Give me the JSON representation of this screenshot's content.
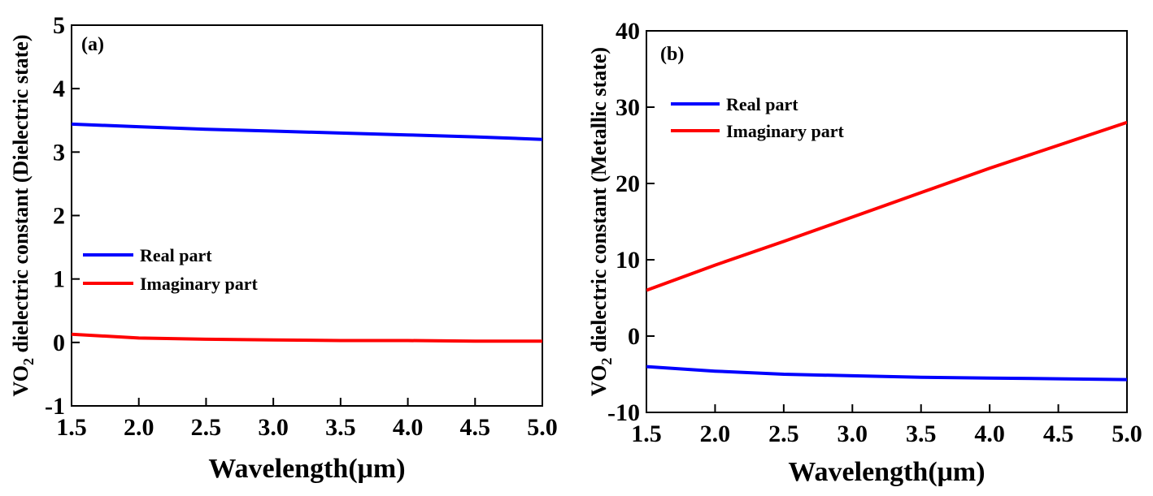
{
  "chart_data": [
    {
      "type": "line",
      "panel_label": "(a)",
      "xlabel": "Wavelength(μm)",
      "ylabel": {
        "prefix": "VO",
        "subscript": "2",
        "suffix": " dielectric constant (Dielectric state)"
      },
      "xlim": [
        1.5,
        5.0
      ],
      "ylim": [
        -1,
        5
      ],
      "xticks": [
        "1.5",
        "2.0",
        "2.5",
        "3.0",
        "3.5",
        "4.0",
        "4.5",
        "5.0"
      ],
      "yticks": [
        "-1",
        "0",
        "1",
        "2",
        "3",
        "4",
        "5"
      ],
      "grid": false,
      "legend_position": "center-left",
      "series": [
        {
          "name": "Real part",
          "color": "#0000ff",
          "x": [
            1.5,
            2.0,
            2.5,
            3.0,
            3.5,
            4.0,
            4.5,
            5.0
          ],
          "y": [
            3.44,
            3.4,
            3.36,
            3.33,
            3.3,
            3.27,
            3.24,
            3.2
          ]
        },
        {
          "name": "Imaginary part",
          "color": "#ff0000",
          "x": [
            1.5,
            2.0,
            2.5,
            3.0,
            3.5,
            4.0,
            4.5,
            5.0
          ],
          "y": [
            0.13,
            0.07,
            0.05,
            0.04,
            0.03,
            0.03,
            0.02,
            0.02
          ]
        }
      ]
    },
    {
      "type": "line",
      "panel_label": "(b)",
      "xlabel": "Wavelength(μm)",
      "ylabel": {
        "prefix": "VO",
        "subscript": "2",
        "suffix": " dielectric constant (Metallic state)"
      },
      "xlim": [
        1.5,
        5.0
      ],
      "ylim": [
        -10,
        40
      ],
      "xticks": [
        "1.5",
        "2.0",
        "2.5",
        "3.0",
        "3.5",
        "4.0",
        "4.5",
        "5.0"
      ],
      "yticks": [
        "-10",
        "0",
        "10",
        "20",
        "30",
        "40"
      ],
      "grid": false,
      "legend_position": "top-left",
      "series": [
        {
          "name": "Real part",
          "color": "#0000ff",
          "x": [
            1.5,
            2.0,
            2.5,
            3.0,
            3.5,
            4.0,
            4.5,
            5.0
          ],
          "y": [
            -4.0,
            -4.6,
            -5.0,
            -5.2,
            -5.4,
            -5.5,
            -5.6,
            -5.7
          ]
        },
        {
          "name": "Imaginary part",
          "color": "#ff0000",
          "x": [
            1.5,
            2.0,
            2.5,
            3.0,
            3.5,
            4.0,
            4.5,
            5.0
          ],
          "y": [
            6.0,
            9.3,
            12.4,
            15.6,
            18.8,
            22.0,
            25.0,
            28.0
          ]
        }
      ]
    }
  ]
}
